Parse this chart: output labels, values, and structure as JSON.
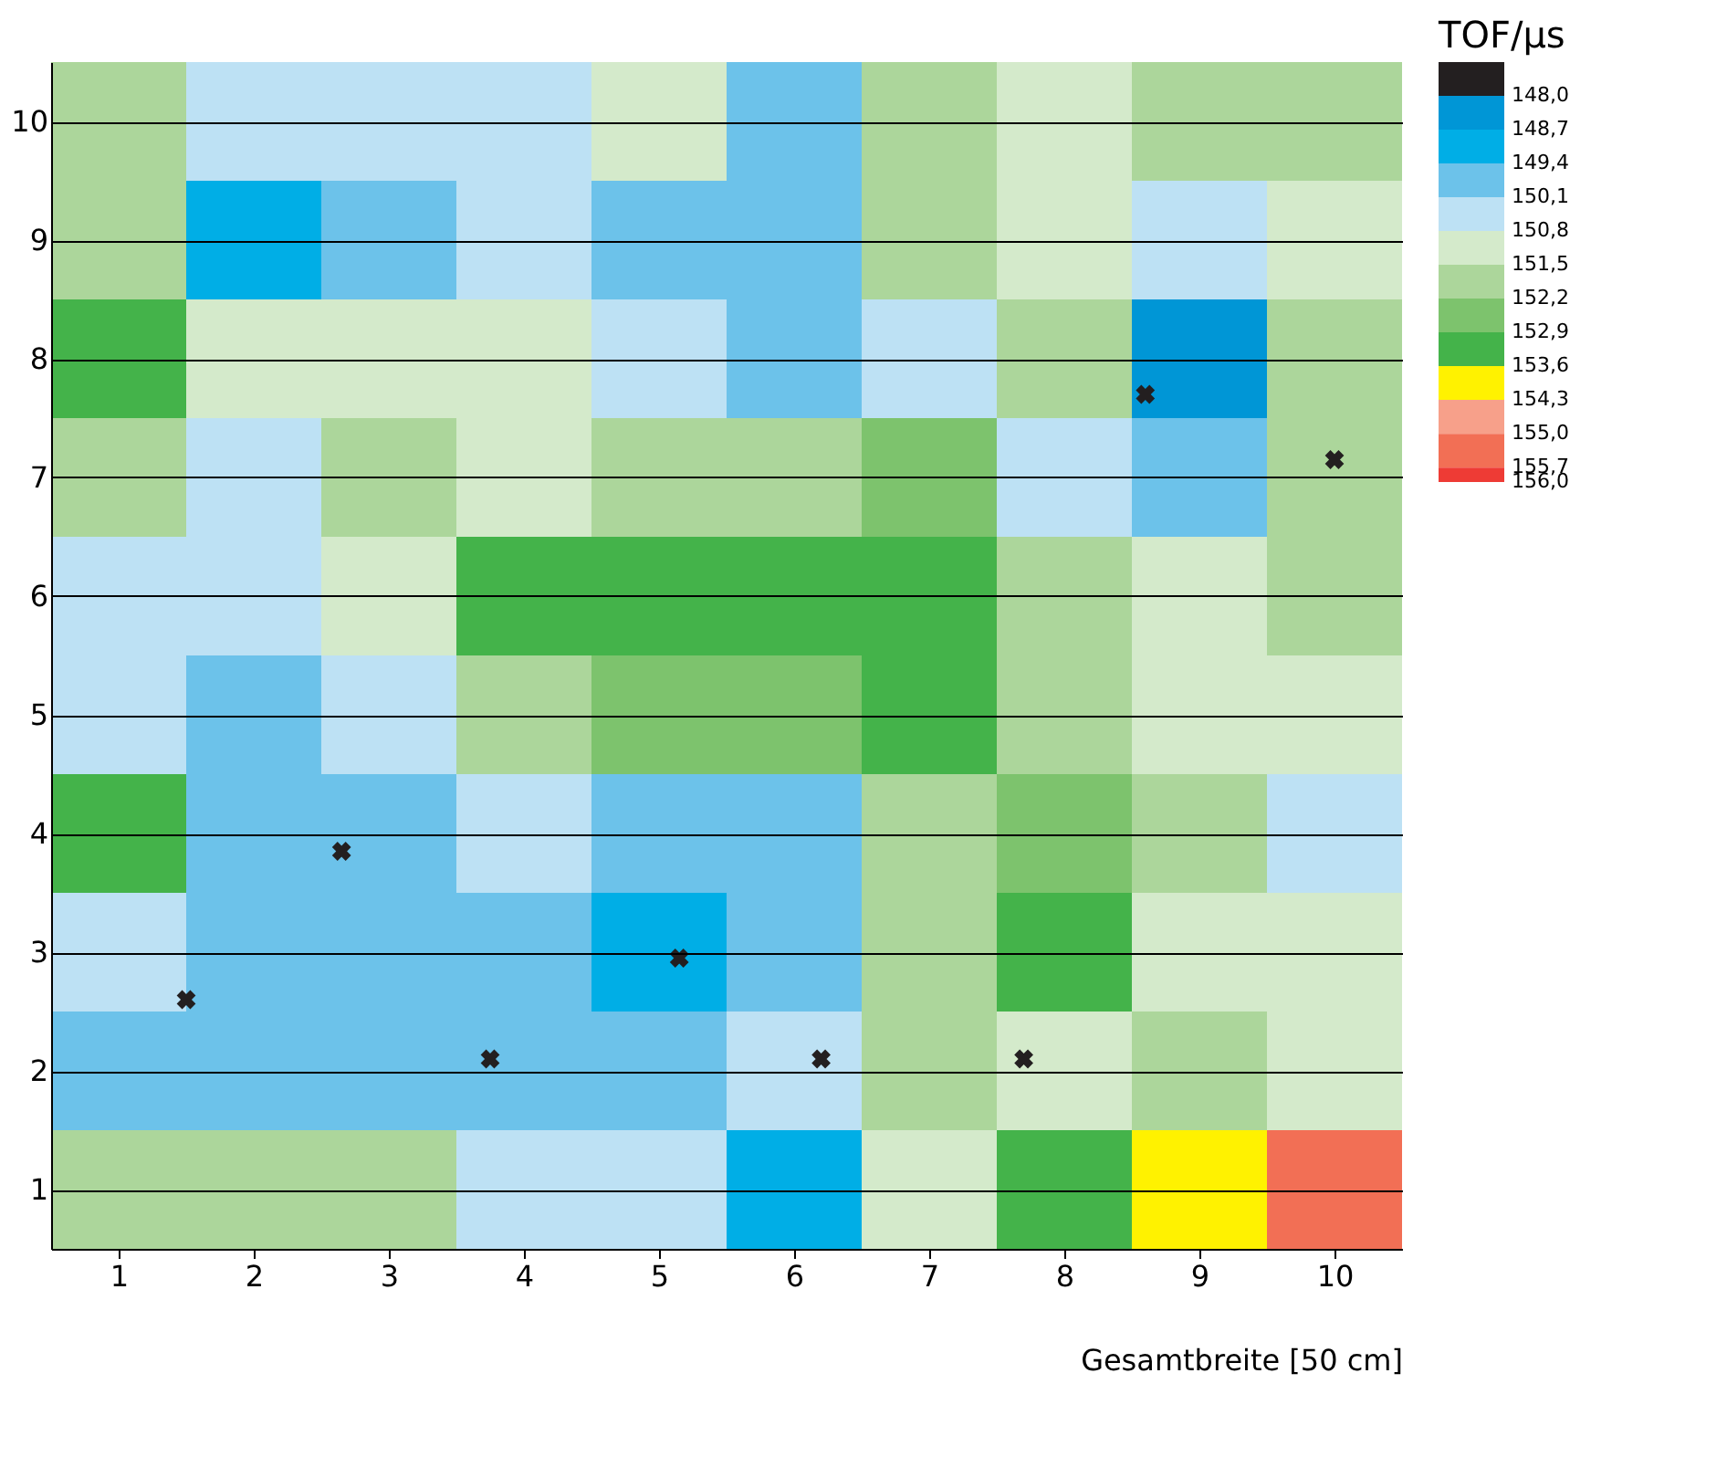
{
  "chart_data": {
    "type": "heatmap",
    "xlabel": "Gesamtbreite [50 cm]",
    "clabel": "TOF/µs",
    "x": [
      1,
      2,
      3,
      4,
      5,
      6,
      7,
      8,
      9,
      10
    ],
    "xlim": [
      0.5,
      10.5
    ],
    "xticks": [
      1,
      2,
      3,
      4,
      5,
      6,
      7,
      8,
      9,
      10
    ],
    "ylim": [
      0.5,
      10.5
    ],
    "yticks": [
      1,
      2,
      3,
      4,
      5,
      6,
      7,
      8,
      9,
      10
    ],
    "cells": [
      [
        151.85,
        150.45,
        150.45,
        150.45,
        151.15,
        149.75,
        151.85,
        151.15,
        151.85,
        151.85
      ],
      [
        151.85,
        149.05,
        149.75,
        150.45,
        149.75,
        149.75,
        151.85,
        151.15,
        150.45,
        151.15
      ],
      [
        153.25,
        151.15,
        151.15,
        151.15,
        150.45,
        149.75,
        150.45,
        151.85,
        148.35,
        151.85
      ],
      [
        151.85,
        150.45,
        151.85,
        151.15,
        151.85,
        151.85,
        152.55,
        150.45,
        149.75,
        151.85
      ],
      [
        150.45,
        150.45,
        151.15,
        153.25,
        153.25,
        153.25,
        153.25,
        151.85,
        151.15,
        151.85
      ],
      [
        150.45,
        149.75,
        150.45,
        151.85,
        152.55,
        152.55,
        153.25,
        151.85,
        151.15,
        151.15
      ],
      [
        153.25,
        149.75,
        149.75,
        150.45,
        149.75,
        149.75,
        151.85,
        152.55,
        151.85,
        150.45
      ],
      [
        150.45,
        149.75,
        149.75,
        149.75,
        149.05,
        149.75,
        151.85,
        153.25,
        151.15,
        151.15
      ],
      [
        149.75,
        149.75,
        149.75,
        149.75,
        149.75,
        150.45,
        151.85,
        151.15,
        151.85,
        151.15
      ],
      [
        151.85,
        151.85,
        151.85,
        150.45,
        150.45,
        149.05,
        151.15,
        153.25,
        153.95,
        155.35
      ]
    ],
    "clim": [
      147.3,
      156.0
    ],
    "cticks": [
      {
        "value": 148.0,
        "label": "148,0"
      },
      {
        "value": 148.7,
        "label": "148,7"
      },
      {
        "value": 149.4,
        "label": "149,4"
      },
      {
        "value": 150.1,
        "label": "150,1"
      },
      {
        "value": 150.8,
        "label": "150,8"
      },
      {
        "value": 151.5,
        "label": "151,5"
      },
      {
        "value": 152.2,
        "label": "152,2"
      },
      {
        "value": 152.9,
        "label": "152,9"
      },
      {
        "value": 153.6,
        "label": "153,6"
      },
      {
        "value": 154.3,
        "label": "154,3"
      },
      {
        "value": 155.0,
        "label": "155,0"
      },
      {
        "value": 155.7,
        "label": "155,7"
      },
      {
        "value": 156.0,
        "label": "156,0"
      }
    ],
    "colors": [
      "#231f20",
      "#0096d6",
      "#00aee6",
      "#6cc2ea",
      "#bde1f4",
      "#d4eacb",
      "#acd69b",
      "#7dc36d",
      "#44b34a",
      "#fff200",
      "#f7a08a",
      "#f26f55",
      "#ee3b35"
    ],
    "series": [
      {
        "type": "scatter",
        "color": "#231f20",
        "marker": "cross",
        "x": [
          1.5,
          2.65,
          3.75,
          5.15,
          6.2,
          7.7,
          8.6,
          10
        ],
        "values": [
          2.6,
          3.85,
          2.1,
          2.95,
          2.1,
          2.1,
          7.7,
          7.15
        ]
      }
    ],
    "grid": "y"
  }
}
